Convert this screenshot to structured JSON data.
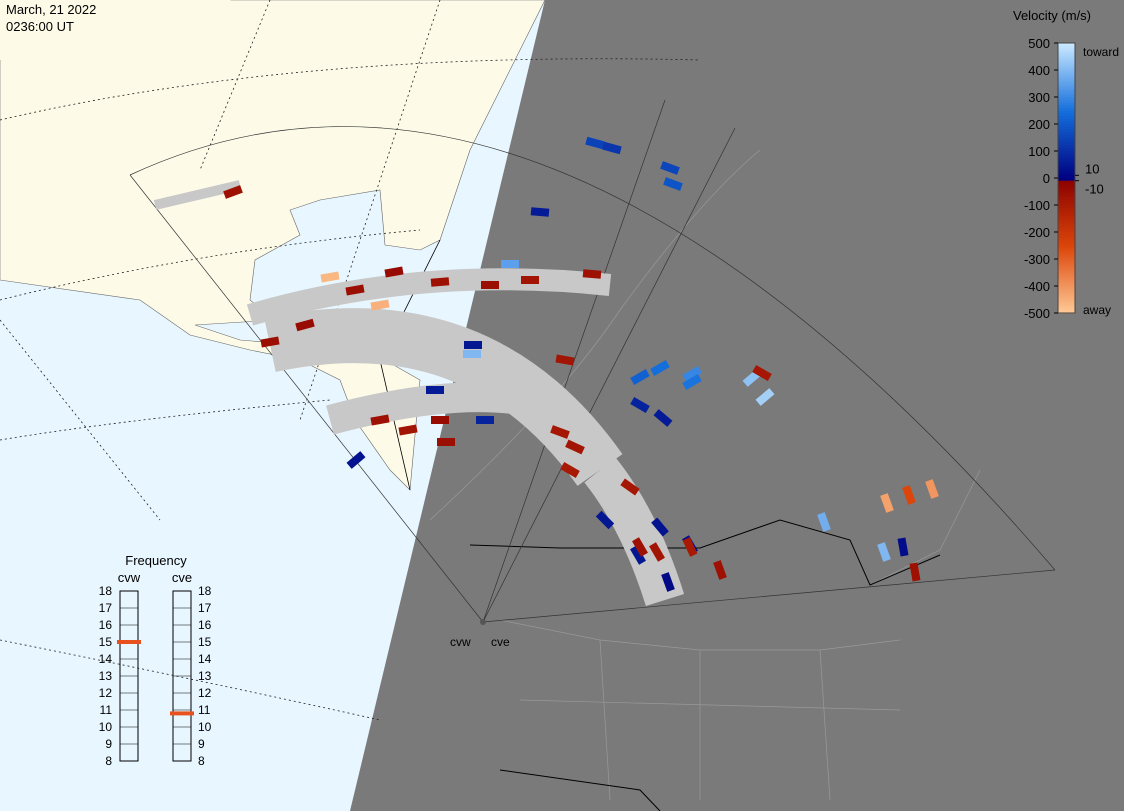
{
  "header": {
    "date": "March, 21 2022",
    "time": "0236:00 UT"
  },
  "velocity_scale": {
    "title": "Velocity (m/s)",
    "lim": [
      -500,
      500
    ],
    "ticks": [
      500,
      400,
      300,
      200,
      100,
      0,
      -100,
      -200,
      -300,
      -400,
      -500
    ],
    "near_zero_ticks": [
      10,
      -10
    ],
    "toward": "toward",
    "away": "away"
  },
  "frequency": {
    "title": "Frequency",
    "lim": [
      8,
      18
    ],
    "ticks": [
      8,
      9,
      10,
      11,
      12,
      13,
      14,
      15,
      16,
      17,
      18
    ],
    "radars": [
      {
        "name": "cvw",
        "value": 15,
        "color": "#e8501e"
      },
      {
        "name": "cve",
        "value": 10.8,
        "color": "#e8501e"
      }
    ]
  },
  "radar_sites": [
    "cvw",
    "cve"
  ],
  "echoes": {
    "velocities": [
      150,
      120,
      160,
      190,
      60,
      350,
      400,
      50,
      220,
      250,
      300,
      420,
      450,
      80,
      60,
      260,
      40,
      30,
      50,
      20,
      40,
      60,
      80,
      380,
      30,
      400,
      50,
      -60,
      -50,
      -40,
      -50,
      -40,
      -60,
      -50,
      -70,
      -60,
      -70,
      -80,
      -60,
      -70,
      -50,
      -40,
      -80,
      -70,
      -90,
      -80,
      -60,
      -70,
      -90,
      -60,
      -250,
      -420,
      -400,
      -60,
      -450,
      -460
    ]
  }
}
